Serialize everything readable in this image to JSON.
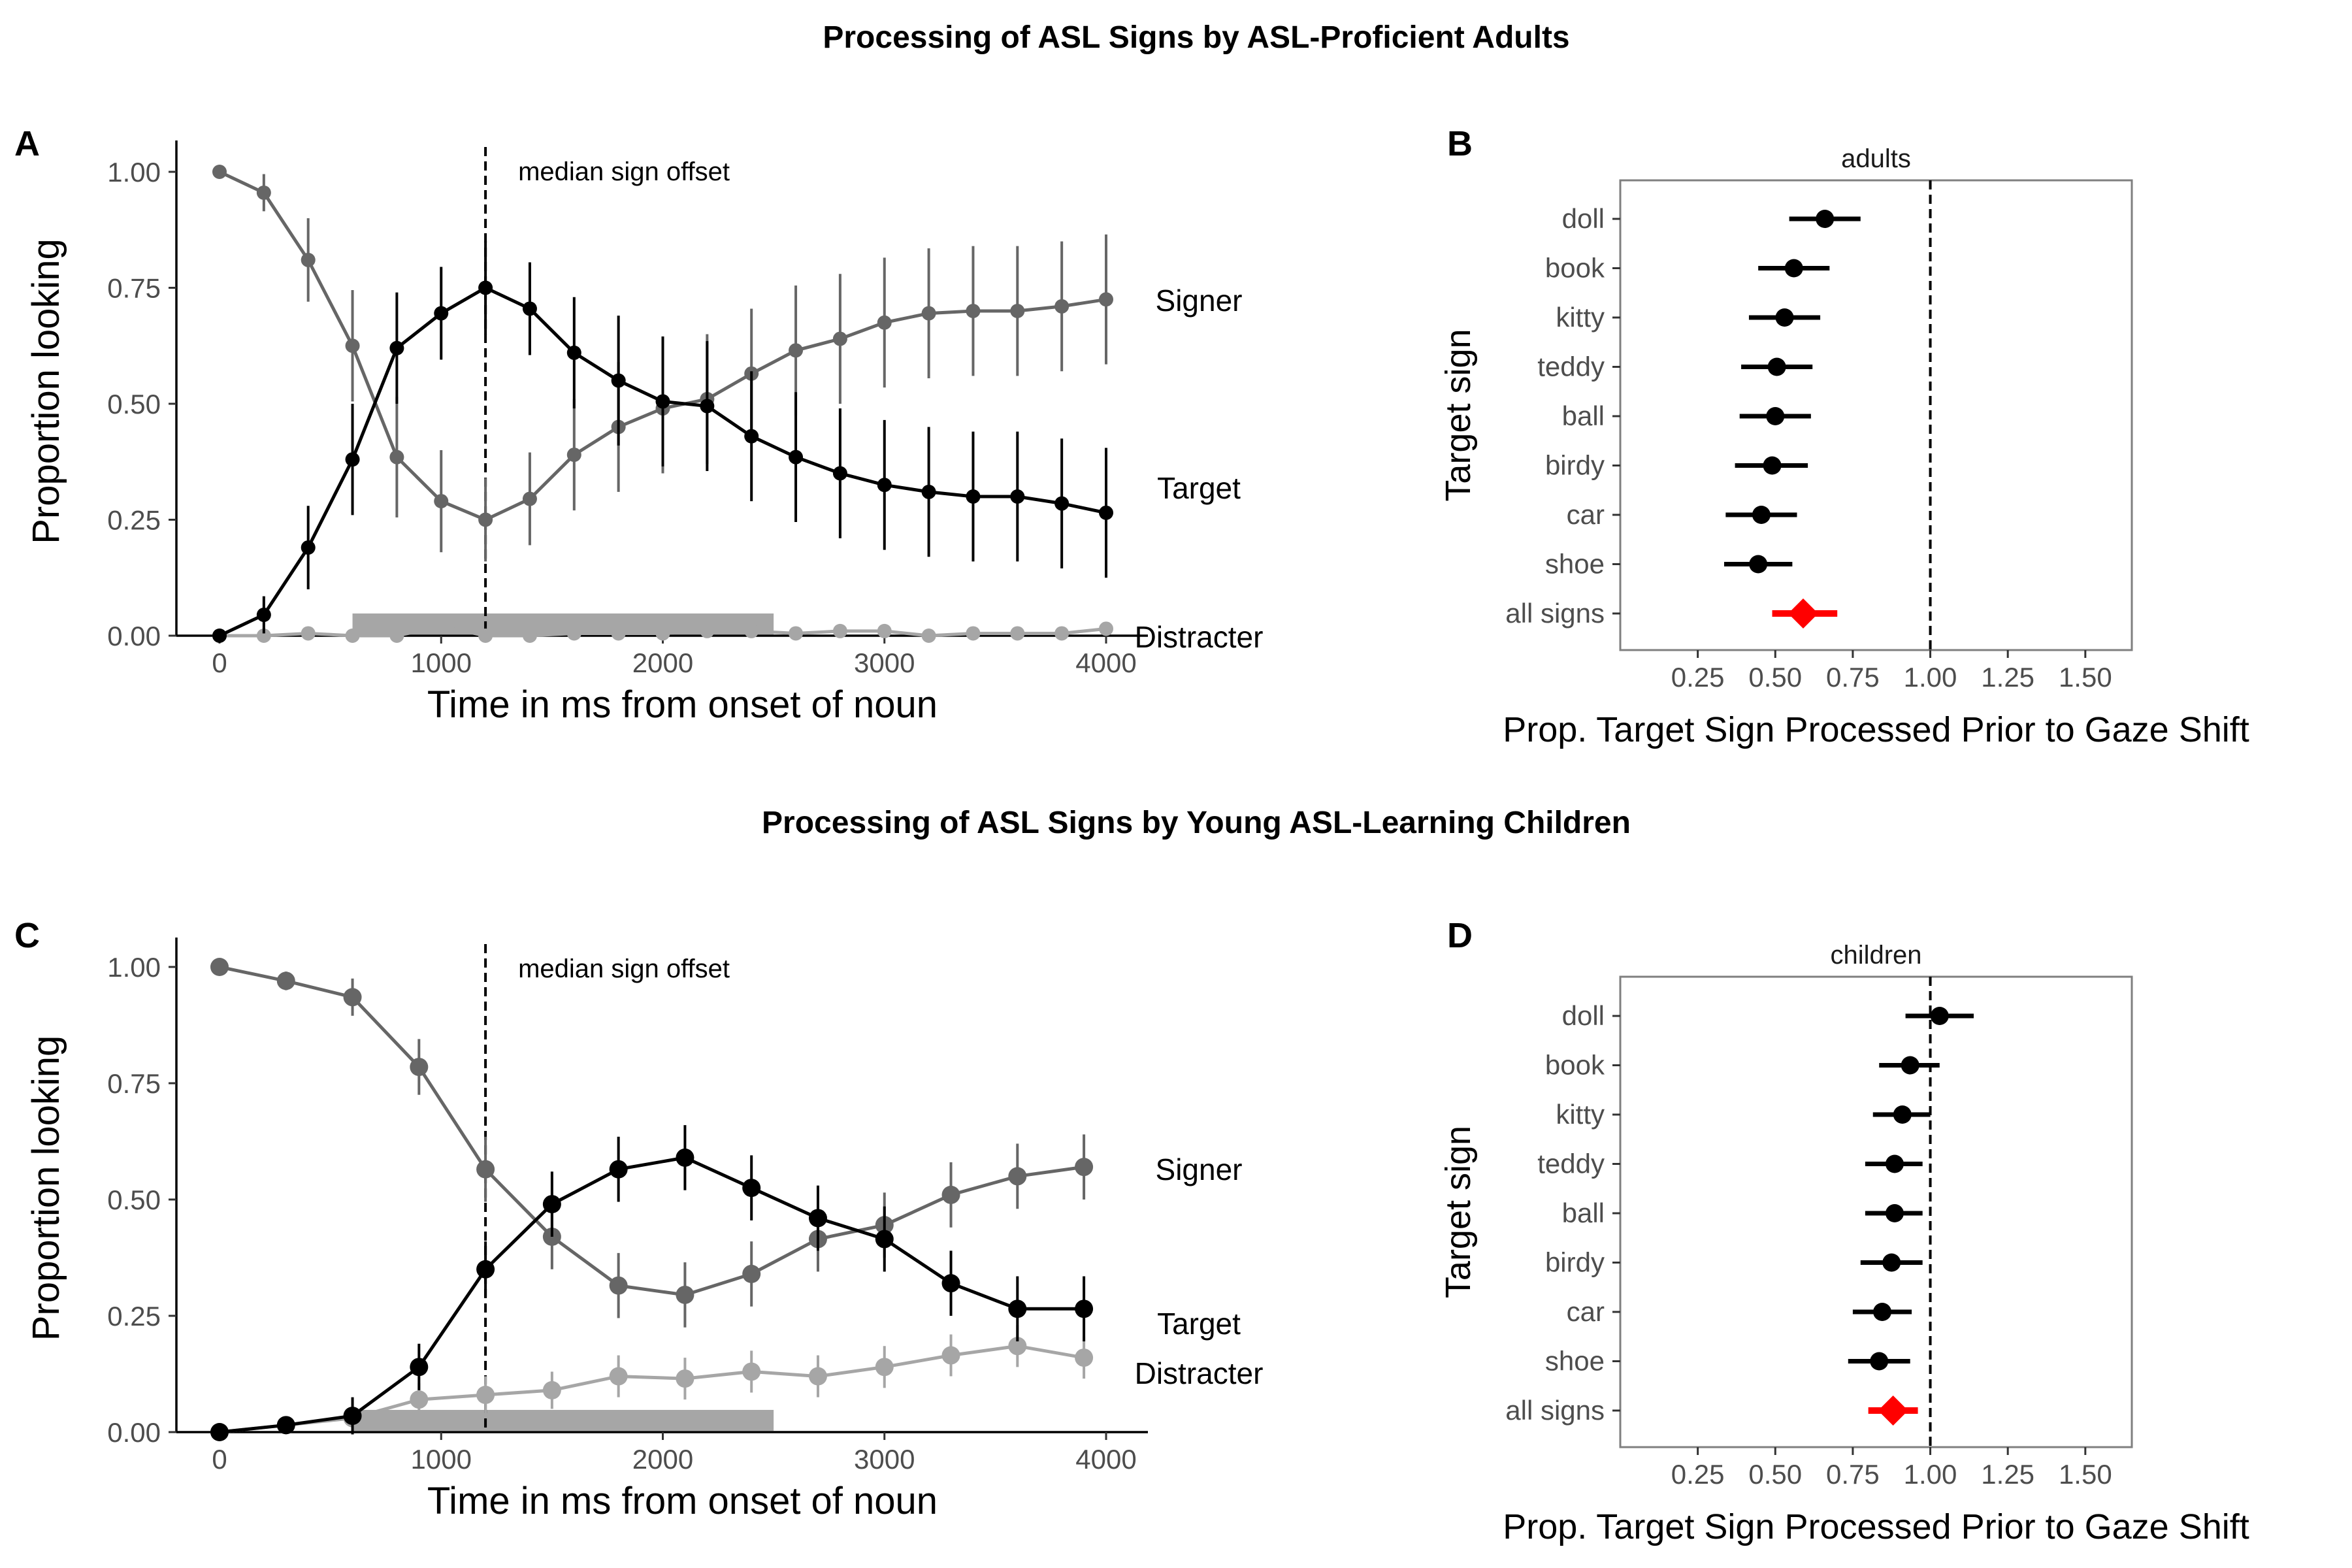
{
  "titles": {
    "top": "Processing of ASL Signs by ASL-Proficient Adults",
    "bottom": "Processing of ASL Signs by Young ASL-Learning Children"
  },
  "colors": {
    "target": "#000000",
    "signer": "#666666",
    "distracter": "#a6a6a6",
    "band": "#a6a6a6",
    "all_signs": "#ff0000"
  },
  "chart_data": [
    {
      "panel": "A",
      "type": "line",
      "xlabel": "Time in ms from onset of noun",
      "ylabel": "Proportion looking",
      "xlim": [
        0,
        4000
      ],
      "ylim": [
        0,
        1
      ],
      "xticks": [
        "0",
        "1000",
        "2000",
        "3000",
        "4000"
      ],
      "yticks": [
        "0.00",
        "0.25",
        "0.50",
        "0.75",
        "1.00"
      ],
      "vline": {
        "x": 1200,
        "label": "median sign offset"
      },
      "band": {
        "x": [
          600,
          2500
        ]
      },
      "x": [
        0,
        200,
        400,
        600,
        800,
        1000,
        1200,
        1400,
        1600,
        1800,
        2000,
        2200,
        2400,
        2600,
        2800,
        3000,
        3200,
        3400,
        3600,
        3800,
        4000
      ],
      "series": [
        {
          "name": "Signer",
          "key": "signer",
          "values": [
            1.0,
            0.955,
            0.81,
            0.625,
            0.385,
            0.29,
            0.25,
            0.295,
            0.39,
            0.45,
            0.49,
            0.51,
            0.565,
            0.615,
            0.64,
            0.675,
            0.695,
            0.7,
            0.7,
            0.71,
            0.725
          ],
          "err": [
            0.0,
            0.04,
            0.09,
            0.12,
            0.13,
            0.11,
            0.09,
            0.1,
            0.12,
            0.14,
            0.14,
            0.14,
            0.14,
            0.14,
            0.14,
            0.14,
            0.14,
            0.14,
            0.14,
            0.14,
            0.14
          ]
        },
        {
          "name": "Target",
          "key": "target",
          "values": [
            0.0,
            0.045,
            0.19,
            0.38,
            0.62,
            0.695,
            0.75,
            0.705,
            0.61,
            0.55,
            0.505,
            0.495,
            0.43,
            0.385,
            0.35,
            0.325,
            0.31,
            0.3,
            0.3,
            0.285,
            0.265
          ],
          "err": [
            0.0,
            0.04,
            0.09,
            0.12,
            0.12,
            0.1,
            0.1,
            0.1,
            0.12,
            0.14,
            0.14,
            0.14,
            0.14,
            0.14,
            0.14,
            0.14,
            0.14,
            0.14,
            0.14,
            0.14,
            0.14
          ]
        },
        {
          "name": "Distracter",
          "key": "distracter",
          "values": [
            0.0,
            0.0,
            0.005,
            0.0,
            0.0,
            0.02,
            0.0,
            0.0,
            0.005,
            0.005,
            0.005,
            0.01,
            0.01,
            0.005,
            0.01,
            0.01,
            0.0,
            0.005,
            0.005,
            0.005,
            0.015
          ],
          "err": [
            0,
            0,
            0,
            0,
            0,
            0,
            0,
            0,
            0,
            0,
            0,
            0,
            0,
            0,
            0,
            0,
            0,
            0,
            0,
            0,
            0
          ]
        }
      ]
    },
    {
      "panel": "B",
      "type": "scatter",
      "facet": "adults",
      "xlabel": "Prop. Target Sign Processed Prior to Gaze Shift",
      "ylabel": "Target sign",
      "xlim": [
        0.0,
        1.65
      ],
      "xticks": [
        "0.25",
        "0.50",
        "0.75",
        "1.00",
        "1.25",
        "1.50"
      ],
      "vline": 1.0,
      "categories": [
        "doll",
        "book",
        "kitty",
        "teddy",
        "ball",
        "birdy",
        "car",
        "shoe",
        "all signs"
      ],
      "values": [
        0.66,
        0.56,
        0.53,
        0.505,
        0.5,
        0.49,
        0.455,
        0.445,
        0.59
      ],
      "ci_low": [
        0.545,
        0.445,
        0.415,
        0.39,
        0.385,
        0.37,
        0.34,
        0.335,
        0.49
      ],
      "ci_high": [
        0.775,
        0.675,
        0.645,
        0.62,
        0.615,
        0.605,
        0.57,
        0.555,
        0.7
      ]
    },
    {
      "panel": "C",
      "type": "line",
      "xlabel": "Time in ms from onset of noun",
      "ylabel": "Proportion looking",
      "xlim": [
        0,
        4000
      ],
      "ylim": [
        0,
        1
      ],
      "xticks": [
        "0",
        "1000",
        "2000",
        "3000",
        "4000"
      ],
      "yticks": [
        "0.00",
        "0.25",
        "0.50",
        "0.75",
        "1.00"
      ],
      "vline": {
        "x": 1200,
        "label": "median sign offset"
      },
      "band": {
        "x": [
          600,
          2500
        ]
      },
      "x": [
        0,
        300,
        600,
        900,
        1200,
        1500,
        1800,
        2100,
        2400,
        2700,
        3000,
        3300,
        3600,
        3900
      ],
      "series": [
        {
          "name": "Signer",
          "key": "signer",
          "values": [
            1.0,
            0.97,
            0.935,
            0.785,
            0.565,
            0.42,
            0.315,
            0.295,
            0.34,
            0.415,
            0.445,
            0.51,
            0.55,
            0.57
          ],
          "err": [
            0.0,
            0.02,
            0.04,
            0.06,
            0.07,
            0.07,
            0.07,
            0.07,
            0.07,
            0.07,
            0.07,
            0.07,
            0.07,
            0.07
          ]
        },
        {
          "name": "Target",
          "key": "target",
          "values": [
            0.0,
            0.015,
            0.035,
            0.14,
            0.35,
            0.49,
            0.565,
            0.59,
            0.525,
            0.46,
            0.415,
            0.32,
            0.265,
            0.265
          ],
          "err": [
            0.0,
            0.015,
            0.04,
            0.05,
            0.06,
            0.07,
            0.07,
            0.07,
            0.07,
            0.07,
            0.07,
            0.07,
            0.07,
            0.07
          ]
        },
        {
          "name": "Distracter",
          "key": "distracter",
          "values": [
            0.0,
            0.015,
            0.03,
            0.07,
            0.08,
            0.09,
            0.12,
            0.115,
            0.13,
            0.12,
            0.14,
            0.165,
            0.185,
            0.16
          ],
          "err": [
            0.0,
            0.01,
            0.02,
            0.035,
            0.04,
            0.04,
            0.045,
            0.045,
            0.045,
            0.045,
            0.045,
            0.045,
            0.045,
            0.045
          ]
        }
      ]
    },
    {
      "panel": "D",
      "type": "scatter",
      "facet": "children",
      "xlabel": "Prop. Target Sign Processed Prior to Gaze Shift",
      "ylabel": "Target sign",
      "xlim": [
        0.0,
        1.65
      ],
      "xticks": [
        "0.25",
        "0.50",
        "0.75",
        "1.00",
        "1.25",
        "1.50"
      ],
      "vline": 1.0,
      "categories": [
        "doll",
        "book",
        "kitty",
        "teddy",
        "ball",
        "birdy",
        "car",
        "shoe",
        "all signs"
      ],
      "values": [
        1.03,
        0.935,
        0.91,
        0.885,
        0.885,
        0.875,
        0.845,
        0.835,
        0.88
      ],
      "ci_low": [
        0.92,
        0.835,
        0.815,
        0.79,
        0.79,
        0.775,
        0.75,
        0.735,
        0.8
      ],
      "ci_high": [
        1.14,
        1.03,
        1.0,
        0.975,
        0.975,
        0.975,
        0.94,
        0.935,
        0.96
      ]
    }
  ]
}
